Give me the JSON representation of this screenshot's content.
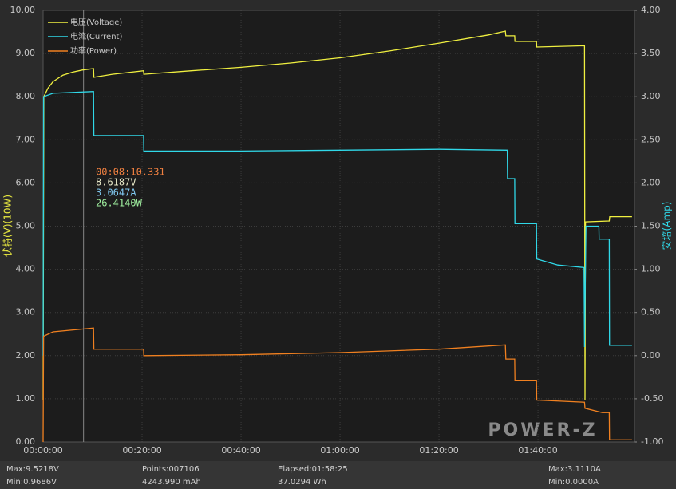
{
  "chart_data": {
    "type": "line",
    "legend_position": "upper left",
    "grid": true,
    "y_label": "伏特(V)(10W)",
    "y2_label": "安培(Amp)",
    "xlim": [
      0,
      119.5
    ],
    "xticks": [
      {
        "value": 0,
        "label": "00:00:00"
      },
      {
        "value": 20,
        "label": "00:20:00"
      },
      {
        "value": 40,
        "label": "00:40:00"
      },
      {
        "value": 60,
        "label": "01:00:00"
      },
      {
        "value": 80,
        "label": "01:20:00"
      },
      {
        "value": 100,
        "label": "01:40:00"
      }
    ],
    "ylim": [
      0,
      10
    ],
    "yticks": [
      {
        "value": 0,
        "label": "0.00"
      },
      {
        "value": 1,
        "label": "1.00"
      },
      {
        "value": 2,
        "label": "2.00"
      },
      {
        "value": 3,
        "label": "3.00"
      },
      {
        "value": 4,
        "label": "4.00"
      },
      {
        "value": 5,
        "label": "5.00"
      },
      {
        "value": 6,
        "label": "6.00"
      },
      {
        "value": 7,
        "label": "7.00"
      },
      {
        "value": 8,
        "label": "8.00"
      },
      {
        "value": 9,
        "label": "9.00"
      },
      {
        "value": 10,
        "label": "10.00"
      }
    ],
    "y2lim": [
      -1,
      4
    ],
    "y2ticks": [
      {
        "value": -1,
        "label": "-1.00"
      },
      {
        "value": -0.5,
        "label": "-0.50"
      },
      {
        "value": 0,
        "label": "0.00"
      },
      {
        "value": 0.5,
        "label": "0.50"
      },
      {
        "value": 1,
        "label": "1.00"
      },
      {
        "value": 1.5,
        "label": "1.50"
      },
      {
        "value": 2,
        "label": "2.00"
      },
      {
        "value": 2.5,
        "label": "2.50"
      },
      {
        "value": 3,
        "label": "3.00"
      },
      {
        "value": 3.5,
        "label": "3.50"
      },
      {
        "value": 4,
        "label": "4.00"
      }
    ],
    "series": [
      {
        "name": "电压(Voltage)",
        "color": "#f0f040",
        "axis": "y",
        "x": [
          0,
          0.15,
          1,
          2,
          4,
          6,
          8,
          10.2,
          10.25,
          14,
          20.3,
          20.35,
          30,
          40,
          50,
          60,
          70,
          80,
          90,
          93.4,
          93.5,
          95.3,
          95.35,
          99.7,
          99.75,
          109.4,
          109.5,
          109.6,
          114.4,
          114.5,
          119
        ],
        "values": [
          0.97,
          8.0,
          8.2,
          8.35,
          8.5,
          8.57,
          8.62,
          8.65,
          8.45,
          8.52,
          8.6,
          8.52,
          8.6,
          8.68,
          8.78,
          8.9,
          9.06,
          9.24,
          9.43,
          9.52,
          9.41,
          9.41,
          9.28,
          9.28,
          9.15,
          9.18,
          0.97,
          5.1,
          5.12,
          5.22,
          5.22
        ]
      },
      {
        "name": "电流(Current)",
        "color": "#30d8e8",
        "axis": "y2",
        "x": [
          0,
          0.1,
          2,
          10.2,
          10.25,
          20.3,
          20.35,
          40,
          60,
          80,
          93.8,
          93.85,
          95.3,
          95.35,
          99.7,
          99.75,
          104,
          109.3,
          109.4,
          109.7,
          112.3,
          112.35,
          114.4,
          114.45,
          119
        ],
        "values": [
          0,
          3.0,
          3.04,
          3.06,
          2.55,
          2.55,
          2.37,
          2.37,
          2.38,
          2.39,
          2.38,
          2.05,
          2.05,
          1.53,
          1.53,
          1.12,
          1.05,
          1.02,
          0.1,
          1.5,
          1.5,
          1.35,
          1.35,
          0.12,
          0.12
        ]
      },
      {
        "name": "功率(Power)",
        "color": "#f08020",
        "axis": "y",
        "x": [
          0,
          0.1,
          2,
          10.2,
          10.25,
          20.3,
          20.35,
          40,
          60,
          80,
          93.4,
          93.5,
          95.3,
          95.35,
          99.7,
          99.75,
          109.4,
          109.5,
          113,
          114.4,
          114.45,
          119
        ],
        "values": [
          0,
          2.45,
          2.55,
          2.64,
          2.15,
          2.15,
          2.0,
          2.02,
          2.07,
          2.15,
          2.25,
          1.92,
          1.92,
          1.43,
          1.43,
          0.97,
          0.92,
          0.78,
          0.68,
          0.68,
          0.05,
          0.05
        ]
      }
    ],
    "cursor": {
      "x": 8.1722,
      "time": "00:08:10.331",
      "voltage": "8.6187V",
      "current": "3.0647A",
      "power": "26.4140W"
    },
    "logo": "POWER-Z",
    "stats": [
      [
        "Max:9.5218V",
        "Min:0.9686V"
      ],
      [
        "Points:007106",
        "4243.990 mAh"
      ],
      [
        "Elapsed:01:58:25",
        "37.0294 Wh"
      ],
      [
        "Max:3.1110A",
        "Min:0.0000A"
      ]
    ]
  }
}
